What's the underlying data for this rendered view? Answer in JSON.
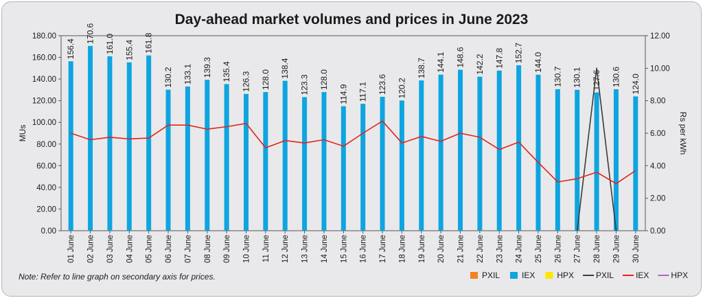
{
  "chart_data": {
    "type": "bar+line",
    "title": "Day-ahead market volumes and prices in June 2023",
    "ylabel": "MUs",
    "y2label": "Rs per kWh",
    "ylim": [
      0,
      180
    ],
    "y2lim": [
      0,
      12
    ],
    "yticks": [
      "0.00",
      "20.00",
      "40.00",
      "60.00",
      "80.00",
      "100.00",
      "120.00",
      "140.00",
      "160.00",
      "180.00"
    ],
    "y2ticks": [
      "0.00",
      "2.00",
      "4.00",
      "6.00",
      "8.00",
      "10.00",
      "12.00"
    ],
    "categories": [
      "01 June",
      "02 June",
      "03 June",
      "04 June",
      "05 June",
      "06 June",
      "07 June",
      "08 June",
      "09 June",
      "10 June",
      "11 June",
      "12 June",
      "13 June",
      "14 June",
      "15 June",
      "16 June",
      "17 June",
      "18 June",
      "19 June",
      "20 June",
      "21 June",
      "22 June",
      "23 June",
      "24 June",
      "25 June",
      "26 June",
      "27 June",
      "28 June",
      "29 June",
      "30 June"
    ],
    "bar_series": [
      {
        "name": "PXIL",
        "color": "#f58220",
        "values": [
          0,
          0,
          0,
          0,
          0,
          0,
          0,
          0,
          0,
          0,
          0,
          0,
          0,
          0,
          0,
          0,
          0,
          0,
          0,
          0,
          0,
          0,
          0,
          0,
          0,
          0,
          0,
          0,
          0,
          0
        ]
      },
      {
        "name": "IEX",
        "color": "#0ea5e0",
        "values": [
          156.4,
          170.6,
          161.0,
          155.4,
          161.8,
          130.2,
          133.1,
          139.3,
          135.4,
          126.3,
          128.0,
          138.4,
          123.3,
          128.0,
          114.9,
          117.1,
          123.6,
          120.2,
          138.7,
          144.1,
          148.6,
          142.2,
          147.8,
          152.7,
          144.0,
          130.7,
          130.1,
          127.6,
          130.6,
          124.0
        ]
      },
      {
        "name": "HPX",
        "color": "#ffe600",
        "values": [
          0,
          0,
          0,
          0,
          0,
          0,
          0,
          0,
          0,
          0,
          0,
          0,
          0,
          0,
          0,
          0,
          0,
          0,
          0,
          0,
          0,
          0,
          0,
          0,
          0,
          0,
          0,
          0,
          0,
          0
        ]
      }
    ],
    "bar_labels": [
      "156.4",
      "170.6",
      "161.0",
      "155.4",
      "161.8",
      "130.2",
      "133.1",
      "139.3",
      "135.4",
      "126.3",
      "128.0",
      "138.4",
      "123.3",
      "128.0",
      "114.9",
      "117.1",
      "123.6",
      "120.2",
      "138.7",
      "144.1",
      "148.6",
      "142.2",
      "147.8",
      "152.7",
      "144.0",
      "130.7",
      "130.1",
      "127.6",
      "130.6",
      "124.0"
    ],
    "line_series": [
      {
        "name": "PXIL",
        "color": "#3a3a3a",
        "values": [
          null,
          null,
          null,
          null,
          null,
          null,
          null,
          null,
          null,
          null,
          null,
          null,
          null,
          null,
          null,
          null,
          null,
          null,
          null,
          null,
          null,
          null,
          null,
          null,
          null,
          null,
          0.0,
          10.0,
          0.0,
          null
        ]
      },
      {
        "name": "IEX",
        "color": "#e2231a",
        "values": [
          6.0,
          5.6,
          5.75,
          5.65,
          5.7,
          6.5,
          6.5,
          6.25,
          6.4,
          6.6,
          5.1,
          5.55,
          5.4,
          5.6,
          5.2,
          6.0,
          6.75,
          5.4,
          5.8,
          5.5,
          6.0,
          5.75,
          5.0,
          5.45,
          4.2,
          3.0,
          3.2,
          3.6,
          2.9,
          3.7
        ]
      },
      {
        "name": "HPX",
        "color": "#b065c2",
        "values": [
          null,
          null,
          null,
          null,
          null,
          null,
          null,
          null,
          null,
          null,
          null,
          null,
          null,
          null,
          null,
          null,
          null,
          null,
          null,
          null,
          null,
          null,
          null,
          null,
          null,
          null,
          null,
          null,
          null,
          null
        ]
      }
    ],
    "legend": [
      {
        "name": "PXIL",
        "kind": "bar",
        "color": "#f58220"
      },
      {
        "name": "IEX",
        "kind": "bar",
        "color": "#0ea5e0"
      },
      {
        "name": "HPX",
        "kind": "bar",
        "color": "#ffe600"
      },
      {
        "name": "PXIL",
        "kind": "line",
        "color": "#3a3a3a"
      },
      {
        "name": "IEX",
        "kind": "line",
        "color": "#e2231a"
      },
      {
        "name": "HPX",
        "kind": "line",
        "color": "#b065c2"
      }
    ],
    "legend_position": "bottom-right",
    "grid": false
  },
  "note": "Note: Refer to line graph on secondary axis for prices."
}
